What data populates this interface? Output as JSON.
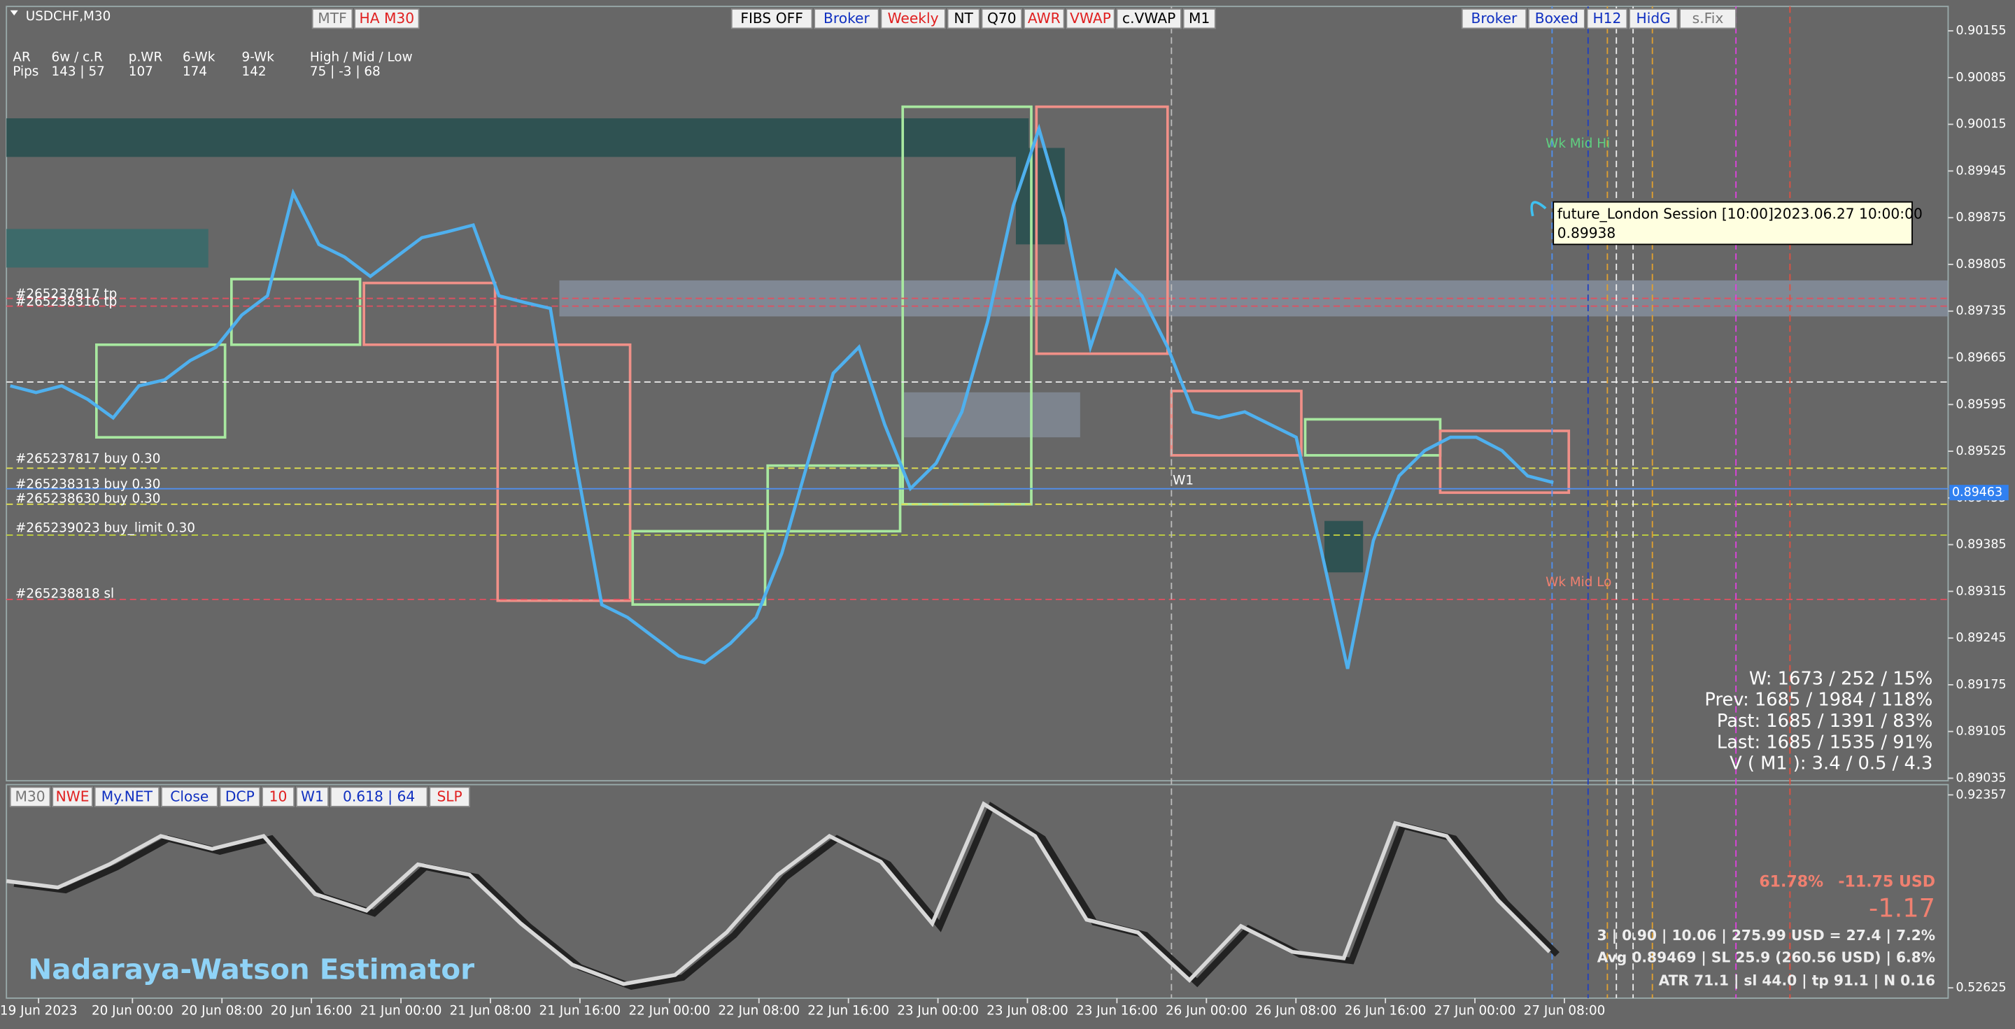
{
  "symbol": "USDCHF,M30",
  "toolbar_left": [
    {
      "label": "MTF",
      "color": "#777777"
    },
    {
      "label": "HA M30",
      "color": "#e02020"
    }
  ],
  "toolbar_center": [
    {
      "label": "FIBS OFF",
      "color": "#000000"
    },
    {
      "label": "Broker",
      "color": "#1030c0"
    },
    {
      "label": "Weekly",
      "color": "#e02020"
    },
    {
      "label": "NT",
      "color": "#000000"
    },
    {
      "label": "Q70",
      "color": "#000000"
    },
    {
      "label": "AWR",
      "color": "#e02020"
    },
    {
      "label": "VWAP",
      "color": "#e02020"
    },
    {
      "label": "c.VWAP",
      "color": "#000000"
    },
    {
      "label": "M1",
      "color": "#000000"
    }
  ],
  "toolbar_right": [
    {
      "label": "Broker",
      "color": "#1030c0"
    },
    {
      "label": "Boxed",
      "color": "#1030c0"
    },
    {
      "label": "H12",
      "color": "#1030c0"
    },
    {
      "label": "HidG",
      "color": "#1030c0"
    },
    {
      "label": "s.Fix",
      "color": "#777777"
    }
  ],
  "stats_header": [
    "AR",
    "6w / c.R",
    "p.WR",
    "6-Wk",
    "9-Wk",
    "High / Mid / Low"
  ],
  "stats_row": [
    "Pips",
    "143 | 57",
    "107",
    "174",
    "142",
    "75 | -3 | 68"
  ],
  "orders": [
    "#265237817 tp",
    "#265238316 tp",
    "#265237817 buy 0.30",
    "#265238313 buy 0.30",
    "#265238630 buy 0.30",
    "#265239023 buy_limit 0.30",
    "#265238818 sl"
  ],
  "labels": {
    "wk_mid_hi": "Wk Mid Hi",
    "wk_mid_lo": "Wk Mid Lo",
    "w1": "W1"
  },
  "tooltip": {
    "line1": "future_London Session [10:00]2023.06.27 10:00:00",
    "line2": "0.89938"
  },
  "summary": [
    "W: 1673 / 252 / 15%",
    "Prev: 1685 / 1984 / 118%",
    "Past: 1685 / 1391 / 83%",
    "Last: 1685 / 1535 / 91%",
    "V ( M1 ): 3.4 / 0.5 / 4.3"
  ],
  "indicator_toolbar": [
    {
      "label": "M30",
      "color": "#777777"
    },
    {
      "label": "NWE",
      "color": "#e02020"
    },
    {
      "label": "My.NET",
      "color": "#1030c0"
    },
    {
      "label": "Close",
      "color": "#1030c0"
    },
    {
      "label": "DCP",
      "color": "#1030c0"
    },
    {
      "label": "10",
      "color": "#e02020"
    },
    {
      "label": "W1",
      "color": "#1030c0"
    },
    {
      "label": "0.618 | 64",
      "color": "#1030c0"
    },
    {
      "label": "SLP",
      "color": "#e02020"
    }
  ],
  "indicator_name": "Nadaraya-Watson Estimator",
  "trade_stats": {
    "win_rate": "61.78%",
    "pnl": "-11.75 USD",
    "pips": "-1.17",
    "line1": "3 | 0.90 | 10.06 | 275.99 USD = 27.4 | 7.2%",
    "line2": "Avg 0.89469 | SL 25.9 (260.56 USD) | 6.8%",
    "line3": "ATR 71.1 | sl 44.0 | tp 91.1 | N 0.16"
  },
  "price_axis": {
    "ticks": [
      0.90155,
      0.90085,
      0.90015,
      0.89945,
      0.89875,
      0.89805,
      0.89735,
      0.89665,
      0.89595,
      0.89525,
      0.89455,
      0.89385,
      0.89315,
      0.89245,
      0.89175,
      0.89105,
      0.89035
    ],
    "current": 0.89463
  },
  "indicator_axis": {
    "ticks": [
      0.92357,
      0.52625
    ]
  },
  "time_axis": [
    "19 Jun 2023",
    "20 Jun 00:00",
    "20 Jun 08:00",
    "20 Jun 16:00",
    "21 Jun 00:00",
    "21 Jun 08:00",
    "21 Jun 16:00",
    "22 Jun 00:00",
    "22 Jun 08:00",
    "22 Jun 16:00",
    "23 Jun 00:00",
    "23 Jun 08:00",
    "23 Jun 16:00",
    "26 Jun 00:00",
    "26 Jun 08:00",
    "26 Jun 16:00",
    "27 Jun 00:00",
    "27 Jun 08:00"
  ],
  "price_series": {
    "color": "#4fb0ee",
    "values": [
      0.89623,
      0.89613,
      0.89623,
      0.89603,
      0.89575,
      0.89623,
      0.89632,
      0.89661,
      0.89681,
      0.89729,
      0.89758,
      0.89912,
      0.89835,
      0.89816,
      0.89787,
      0.89816,
      0.89845,
      0.89854,
      0.89864,
      0.89758,
      0.89748,
      0.89739,
      0.89507,
      0.89295,
      0.89276,
      0.89247,
      0.89218,
      0.89208,
      0.89237,
      0.89276,
      0.89372,
      0.89507,
      0.89642,
      0.89681,
      0.89565,
      0.89469,
      0.89507,
      0.89584,
      0.89719,
      0.89893,
      0.90008,
      0.89874,
      0.89681,
      0.89796,
      0.89758,
      0.89681,
      0.89584,
      0.89575,
      0.89584,
      0.89565,
      0.89546,
      0.89372,
      0.89199,
      0.89391,
      0.89488,
      0.89526,
      0.89546,
      0.89546,
      0.89526,
      0.89488,
      0.89478
    ]
  },
  "oscillator_series": {
    "color": "#d8d8d8",
    "values": [
      0.7461,
      0.7329,
      0.7805,
      0.8388,
      0.8123,
      0.8388,
      0.7196,
      0.6852,
      0.7805,
      0.7593,
      0.6587,
      0.5739,
      0.5342,
      0.5527,
      0.6402,
      0.7593,
      0.8388,
      0.7858,
      0.6587,
      0.905,
      0.8388,
      0.6666,
      0.6402,
      0.5421,
      0.6534,
      0.6004,
      0.5872,
      0.8653,
      0.8388,
      0.7064,
      0.6004
    ]
  }
}
